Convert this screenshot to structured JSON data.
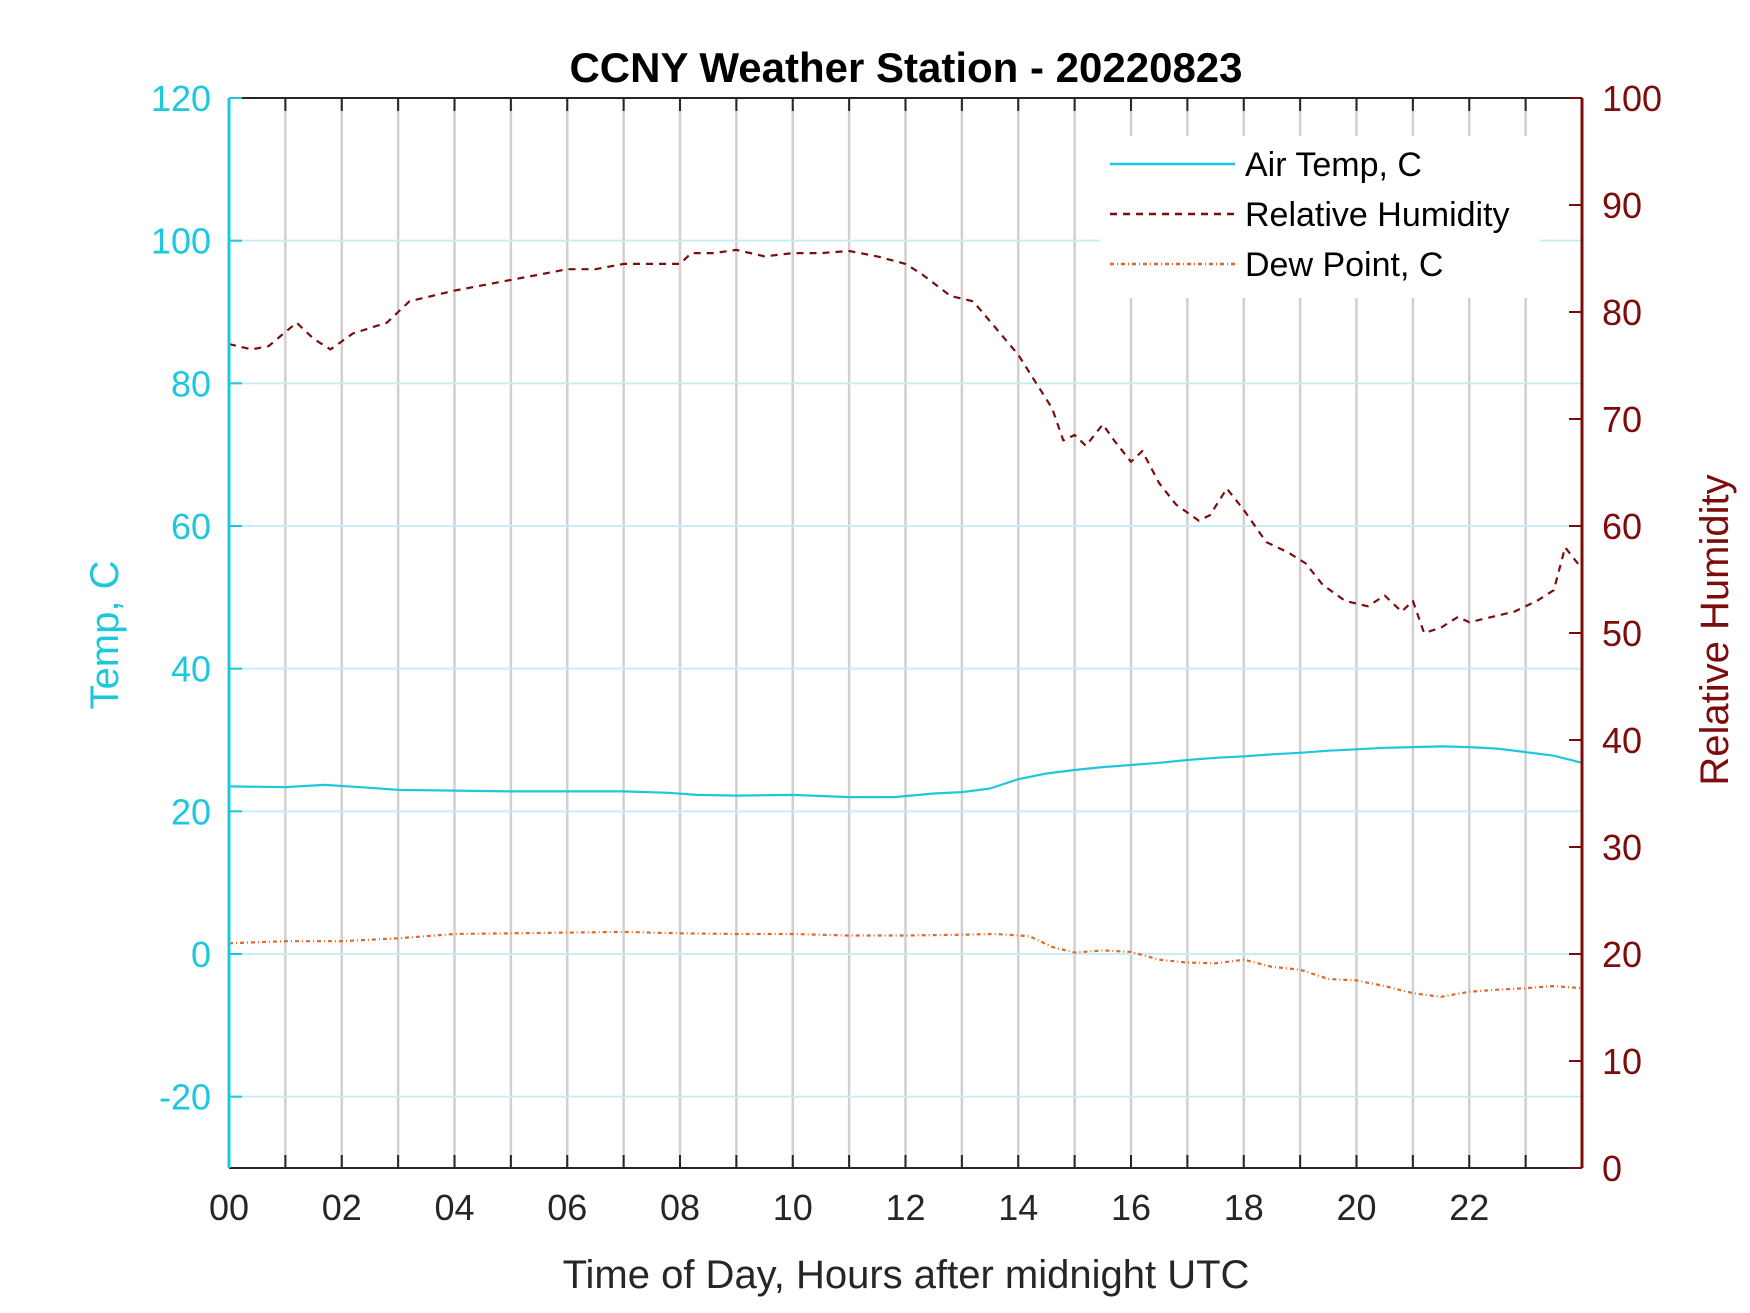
{
  "chart_data": {
    "type": "line",
    "title": "CCNY Weather Station - 20220823",
    "xlabel": "Time of Day, Hours after midnight UTC",
    "ylabel_left": "Temp, C",
    "ylabel_right": "Relative Humidity",
    "xlim": [
      0,
      24
    ],
    "ylim_left": [
      -30,
      120
    ],
    "ylim_right": [
      0,
      100
    ],
    "xticks": [
      "00",
      "02",
      "04",
      "06",
      "08",
      "10",
      "12",
      "14",
      "16",
      "18",
      "20",
      "22"
    ],
    "xtick_values": [
      0,
      2,
      4,
      6,
      8,
      10,
      12,
      14,
      16,
      18,
      20,
      22
    ],
    "yticks_left": [
      "-20",
      "0",
      "20",
      "40",
      "60",
      "80",
      "100",
      "120"
    ],
    "ytick_values_left": [
      -20,
      0,
      20,
      40,
      60,
      80,
      100,
      120
    ],
    "yticks_right": [
      "0",
      "10",
      "20",
      "30",
      "40",
      "50",
      "60",
      "70",
      "80",
      "90",
      "100"
    ],
    "ytick_values_right": [
      0,
      10,
      20,
      30,
      40,
      50,
      60,
      70,
      80,
      90,
      100
    ],
    "grid": true,
    "legend_position": "top-right",
    "colors": {
      "air_temp": "#1ec8dc",
      "relative_humidity": "#7d0d0d",
      "dew_point": "#e0682a",
      "vertical_grid": "#d0d0d0",
      "horizontal_grid": "#c8eef4"
    },
    "series": [
      {
        "name": "Air Temp, C",
        "axis": "left",
        "style": "solid",
        "x": [
          0,
          1,
          1.7,
          2.5,
          3,
          4,
          5,
          6,
          7,
          7.8,
          8.3,
          9,
          10,
          11,
          11.8,
          12.5,
          13,
          13.5,
          14,
          14.5,
          15,
          15.5,
          16,
          16.5,
          17,
          17.5,
          18,
          18.5,
          19,
          19.5,
          20,
          20.5,
          21,
          21.5,
          22,
          22.5,
          23,
          23.5,
          24
        ],
        "values": [
          23.5,
          23.4,
          23.7,
          23.3,
          23.0,
          22.9,
          22.8,
          22.8,
          22.8,
          22.6,
          22.3,
          22.2,
          22.3,
          22.0,
          22.0,
          22.5,
          22.7,
          23.2,
          24.5,
          25.3,
          25.8,
          26.2,
          26.5,
          26.8,
          27.2,
          27.5,
          27.7,
          28.0,
          28.2,
          28.5,
          28.7,
          28.9,
          29.0,
          29.1,
          29.0,
          28.8,
          28.3,
          27.8,
          26.8
        ]
      },
      {
        "name": "Relative Humidity",
        "axis": "right",
        "style": "dashed",
        "x": [
          0,
          0.4,
          0.7,
          1.2,
          1.5,
          1.8,
          2.2,
          2.8,
          3.2,
          3.6,
          4,
          4.5,
          5,
          5.5,
          6,
          6.5,
          7,
          7.5,
          8,
          8.2,
          8.6,
          9,
          9.5,
          10,
          10.5,
          11,
          11.5,
          12,
          12.3,
          12.8,
          13.2,
          13.6,
          14,
          14.3,
          14.6,
          14.8,
          15,
          15.2,
          15.5,
          15.7,
          16,
          16.2,
          16.5,
          16.8,
          17.2,
          17.4,
          17.7,
          18,
          18.4,
          18.8,
          19.1,
          19.4,
          19.8,
          20.2,
          20.5,
          20.8,
          21,
          21.2,
          21.5,
          21.8,
          22,
          22.4,
          22.8,
          23.2,
          23.5,
          23.7,
          24
        ],
        "values": [
          77,
          76.5,
          76.8,
          79,
          77.5,
          76.5,
          78,
          79,
          81,
          81.5,
          82,
          82.5,
          83,
          83.5,
          84,
          84,
          84.5,
          84.5,
          84.5,
          85.5,
          85.5,
          85.8,
          85.2,
          85.5,
          85.5,
          85.7,
          85.2,
          84.5,
          83.5,
          81.5,
          81,
          78.5,
          76,
          73.5,
          71,
          68,
          68.5,
          67.5,
          69.5,
          68,
          66,
          67,
          64,
          62,
          60.5,
          61,
          63.5,
          61.5,
          58.5,
          57.5,
          56.5,
          54.5,
          53,
          52.5,
          53.5,
          52,
          53,
          50,
          50.5,
          51.5,
          51,
          51.5,
          52,
          53,
          54,
          58,
          56
        ]
      },
      {
        "name": "Dew Point, C",
        "axis": "left",
        "style": "dash-dot",
        "x": [
          0,
          1,
          2,
          3,
          4,
          5,
          6,
          7,
          8,
          9,
          10,
          11,
          12,
          13,
          13.6,
          14.2,
          14.6,
          15,
          15.5,
          16,
          16.5,
          17,
          17.5,
          18,
          18.5,
          19,
          19.5,
          20,
          20.5,
          21,
          21.5,
          22,
          22.5,
          23,
          23.5,
          24
        ],
        "values": [
          1.5,
          1.8,
          1.8,
          2.2,
          2.8,
          2.9,
          3.0,
          3.1,
          2.9,
          2.8,
          2.8,
          2.6,
          2.6,
          2.7,
          2.8,
          2.5,
          1.0,
          0.2,
          0.5,
          0.3,
          -0.8,
          -1.2,
          -1.3,
          -0.8,
          -1.8,
          -2.2,
          -3.5,
          -3.7,
          -4.5,
          -5.5,
          -6.0,
          -5.3,
          -5.0,
          -4.8,
          -4.5,
          -4.8
        ]
      }
    ]
  }
}
